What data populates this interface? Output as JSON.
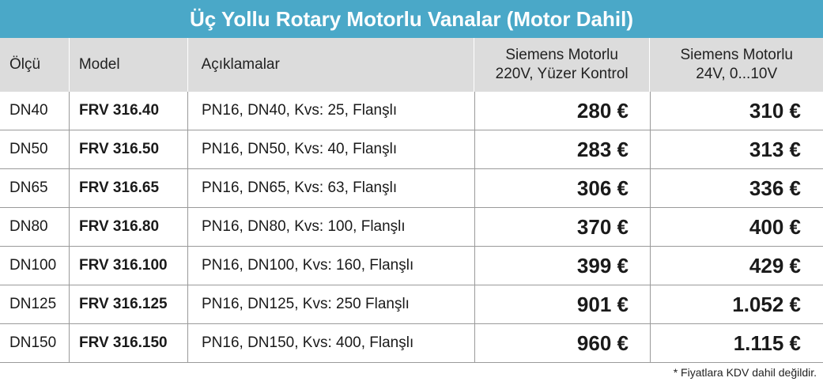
{
  "title": "Üç Yollu Rotary Motorlu Vanalar (Motor Dahil)",
  "columns": {
    "size": "Ölçü",
    "model": "Model",
    "description": "Açıklamalar",
    "price1_line1": "Siemens Motorlu",
    "price1_line2": "220V, Yüzer Kontrol",
    "price2_line1": "Siemens Motorlu",
    "price2_line2": "24V, 0...10V"
  },
  "rows": [
    {
      "size": "DN40",
      "model": "FRV 316.40",
      "description": "PN16, DN40, Kvs: 25, Flanşlı",
      "price1": "280 €",
      "price2": "310 €"
    },
    {
      "size": "DN50",
      "model": "FRV 316.50",
      "description": "PN16, DN50, Kvs: 40, Flanşlı",
      "price1": "283 €",
      "price2": "313 €"
    },
    {
      "size": "DN65",
      "model": "FRV 316.65",
      "description": "PN16, DN65, Kvs: 63, Flanşlı",
      "price1": "306 €",
      "price2": "336 €"
    },
    {
      "size": "DN80",
      "model": "FRV 316.80",
      "description": "PN16, DN80, Kvs: 100, Flanşlı",
      "price1": "370 €",
      "price2": "400 €"
    },
    {
      "size": "DN100",
      "model": "FRV 316.100",
      "description": "PN16, DN100, Kvs: 160, Flanşlı",
      "price1": "399 €",
      "price2": "429 €"
    },
    {
      "size": "DN125",
      "model": "FRV 316.125",
      "description": "PN16, DN125, Kvs: 250 Flanşlı",
      "price1": "901 €",
      "price2": "1.052 €"
    },
    {
      "size": "DN150",
      "model": "FRV 316.150",
      "description": "PN16, DN150, Kvs: 400, Flanşlı",
      "price1": "960 €",
      "price2": "1.115 €"
    }
  ],
  "footnote": "* Fiyatlara KDV dahil değildir.",
  "colors": {
    "title_bar": "#4aa8c8",
    "header_bg": "#dcdcdc"
  }
}
